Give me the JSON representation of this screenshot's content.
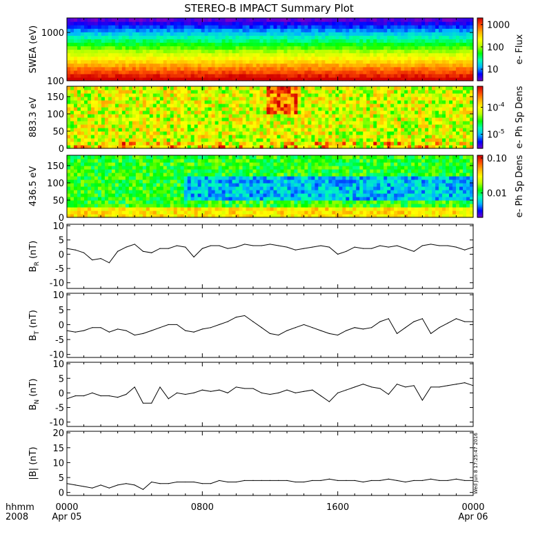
{
  "title": "STEREO-B IMPACT Summary Plot",
  "stamp": "Wed Jun  8 17:25:47 2016",
  "x_axis": {
    "corner_label_1": "hhmm",
    "corner_label_2": "2008",
    "ticks": [
      {
        "label": "0000",
        "sublabel": "Apr 05",
        "hours": 0
      },
      {
        "label": "0800",
        "sublabel": "",
        "hours": 8
      },
      {
        "label": "1600",
        "sublabel": "",
        "hours": 16
      },
      {
        "label": "0000",
        "sublabel": "Apr 06",
        "hours": 24
      }
    ],
    "range_hours": [
      0,
      24
    ]
  },
  "colors": {
    "colormap": [
      "#7a00c8",
      "#0000ff",
      "#00b4ff",
      "#00ffb4",
      "#00ff00",
      "#b4ff00",
      "#ffff00",
      "#ffb400",
      "#ff5000",
      "#d20000"
    ],
    "trace": "#000000"
  },
  "chart_data": [
    {
      "type": "heatmap",
      "name": "swea",
      "ylabel": "SWEA (eV)",
      "ylog": true,
      "ylim": [
        100,
        2000
      ],
      "yticks": [
        {
          "label": "1000",
          "value": 1000
        },
        {
          "label": "100",
          "value": 100
        }
      ],
      "colorbar": {
        "label": "e- Flux",
        "log": true,
        "range": [
          3,
          2000
        ],
        "ticks": [
          {
            "label": "1000",
            "value": 1000
          },
          {
            "label": "100",
            "value": 100
          },
          {
            "label": "10",
            "value": 10
          }
        ]
      }
    },
    {
      "type": "heatmap",
      "name": "pad883",
      "ylabel": "883.3 eV",
      "ylim": [
        0,
        180
      ],
      "yticks": [
        {
          "label": "150",
          "value": 150
        },
        {
          "label": "100",
          "value": 100
        },
        {
          "label": "50",
          "value": 50
        },
        {
          "label": "0",
          "value": 0
        }
      ],
      "colorbar": {
        "label": "e- Ph Sp Dens",
        "log": true,
        "range": [
          3e-06,
          0.0006
        ],
        "ticks": [
          {
            "label": "10",
            "sup": "-4",
            "value": 0.0001
          },
          {
            "label": "10",
            "sup": "-5",
            "value": 1e-05
          }
        ]
      }
    },
    {
      "type": "heatmap",
      "name": "pad436",
      "ylabel": "436.5 eV",
      "ylim": [
        0,
        180
      ],
      "yticks": [
        {
          "label": "150",
          "value": 150
        },
        {
          "label": "100",
          "value": 100
        },
        {
          "label": "50",
          "value": 50
        },
        {
          "label": "0",
          "value": 0
        }
      ],
      "colorbar": {
        "label": "e- Ph Sp Dens",
        "log": true,
        "range": [
          0.002,
          0.12
        ],
        "ticks": [
          {
            "label": "0.10",
            "value": 0.1
          },
          {
            "label": "0.01",
            "value": 0.01
          }
        ]
      }
    },
    {
      "type": "line",
      "name": "br",
      "ylabel": "B",
      "ylabel_sub": "R",
      "ylabel_unit": " (nT)",
      "ylim": [
        -12,
        10.5
      ],
      "yticks": [
        {
          "label": "10",
          "value": 10
        },
        {
          "label": "5",
          "value": 5
        },
        {
          "label": "0",
          "value": 0
        },
        {
          "label": "-5",
          "value": -5
        },
        {
          "label": "-10",
          "value": -10
        }
      ],
      "x": [
        0,
        0.5,
        1,
        1.5,
        2,
        2.5,
        3,
        3.5,
        4,
        4.5,
        5,
        5.5,
        6,
        6.5,
        7,
        7.5,
        8,
        8.5,
        9,
        9.5,
        10,
        10.5,
        11,
        11.5,
        12,
        12.5,
        13,
        13.5,
        14,
        14.5,
        15,
        15.5,
        16,
        16.5,
        17,
        17.5,
        18,
        18.5,
        19,
        19.5,
        20,
        20.5,
        21,
        21.5,
        22,
        22.5,
        23,
        23.5,
        24
      ],
      "values": [
        2,
        1.5,
        0.5,
        -2,
        -1.5,
        -3,
        1,
        2.5,
        3.5,
        1,
        0.5,
        2,
        2,
        3,
        2.5,
        -1,
        2,
        3,
        3,
        2,
        2.5,
        3.5,
        3,
        3,
        3.5,
        3,
        2.5,
        1.5,
        2,
        2.5,
        3,
        2.5,
        0,
        1,
        2.5,
        2,
        2,
        3,
        2.5,
        3,
        2,
        1,
        3,
        3.5,
        3,
        3,
        2.5,
        1.5,
        2.5
      ]
    },
    {
      "type": "line",
      "name": "bt",
      "ylabel": "B",
      "ylabel_sub": "T",
      "ylabel_unit": " (nT)",
      "ylim": [
        -11,
        10.5
      ],
      "yticks": [
        {
          "label": "10",
          "value": 10
        },
        {
          "label": "5",
          "value": 5
        },
        {
          "label": "0",
          "value": 0
        },
        {
          "label": "-5",
          "value": -5
        },
        {
          "label": "-10",
          "value": -10
        }
      ],
      "x": [
        0,
        0.5,
        1,
        1.5,
        2,
        2.5,
        3,
        3.5,
        4,
        4.5,
        5,
        5.5,
        6,
        6.5,
        7,
        7.5,
        8,
        8.5,
        9,
        9.5,
        10,
        10.5,
        11,
        11.5,
        12,
        12.5,
        13,
        13.5,
        14,
        14.5,
        15,
        15.5,
        16,
        16.5,
        17,
        17.5,
        18,
        18.5,
        19,
        19.5,
        20,
        20.5,
        21,
        21.5,
        22,
        22.5,
        23,
        23.5,
        24
      ],
      "values": [
        -2,
        -2.5,
        -2,
        -1,
        -1,
        -2.5,
        -1.5,
        -2,
        -3.5,
        -3,
        -2,
        -1,
        0,
        0,
        -2,
        -2.5,
        -1.5,
        -1,
        0,
        1,
        2.5,
        3,
        1,
        -1,
        -3,
        -3.5,
        -2,
        -1,
        0,
        -1,
        -2,
        -3,
        -3.5,
        -2,
        -1,
        -1.5,
        -1,
        1,
        2,
        -3,
        -1,
        1,
        2,
        -3,
        -1,
        0.5,
        2,
        1,
        1
      ]
    },
    {
      "type": "line",
      "name": "bn",
      "ylabel": "B",
      "ylabel_sub": "N",
      "ylabel_unit": " (nT)",
      "ylim": [
        -11.5,
        10.5
      ],
      "yticks": [
        {
          "label": "10",
          "value": 10
        },
        {
          "label": "5",
          "value": 5
        },
        {
          "label": "0",
          "value": 0
        },
        {
          "label": "-5",
          "value": -5
        },
        {
          "label": "-10",
          "value": -10
        }
      ],
      "x": [
        0,
        0.5,
        1,
        1.5,
        2,
        2.5,
        3,
        3.5,
        4,
        4.5,
        5,
        5.5,
        6,
        6.5,
        7,
        7.5,
        8,
        8.5,
        9,
        9.5,
        10,
        10.5,
        11,
        11.5,
        12,
        12.5,
        13,
        13.5,
        14,
        14.5,
        15,
        15.5,
        16,
        16.5,
        17,
        17.5,
        18,
        18.5,
        19,
        19.5,
        20,
        20.5,
        21,
        21.5,
        22,
        22.5,
        23,
        23.5,
        24
      ],
      "values": [
        -2,
        -1,
        -1,
        0,
        -1,
        -1,
        -1.5,
        -0.5,
        2,
        -3.5,
        -3.5,
        2,
        -2,
        0,
        -0.5,
        0,
        1,
        0.5,
        1,
        0,
        2,
        1.5,
        1.5,
        0,
        -0.5,
        0,
        1,
        0,
        0.5,
        1,
        -1,
        -3,
        0,
        1,
        2,
        3,
        2,
        1.5,
        -0.5,
        3,
        2,
        2.5,
        -2.5,
        2,
        2,
        2.5,
        3,
        3.5,
        2.5
      ]
    },
    {
      "type": "line",
      "name": "bmag",
      "ylabel": "|B| (nT)",
      "ylim": [
        -1,
        20.5
      ],
      "yticks": [
        {
          "label": "20",
          "value": 20
        },
        {
          "label": "15",
          "value": 15
        },
        {
          "label": "10",
          "value": 10
        },
        {
          "label": "5",
          "value": 5
        },
        {
          "label": "0",
          "value": 0
        }
      ],
      "x": [
        0,
        0.5,
        1,
        1.5,
        2,
        2.5,
        3,
        3.5,
        4,
        4.5,
        5,
        5.5,
        6,
        6.5,
        7,
        7.5,
        8,
        8.5,
        9,
        9.5,
        10,
        10.5,
        11,
        11.5,
        12,
        12.5,
        13,
        13.5,
        14,
        14.5,
        15,
        15.5,
        16,
        16.5,
        17,
        17.5,
        18,
        18.5,
        19,
        19.5,
        20,
        20.5,
        21,
        21.5,
        22,
        22.5,
        23,
        23.5,
        24
      ],
      "values": [
        3,
        2.5,
        2,
        1.5,
        2.5,
        1.5,
        2.5,
        3,
        2.5,
        1,
        3.5,
        3,
        3,
        3.5,
        3.5,
        3.5,
        3,
        3,
        4,
        3.5,
        3.5,
        4,
        4,
        4,
        4,
        4,
        4,
        3.5,
        3.5,
        4,
        4,
        4.5,
        4,
        4,
        4,
        3.5,
        4,
        4,
        4.5,
        4,
        3.5,
        4,
        4,
        4.5,
        4,
        4,
        4.5,
        4,
        4
      ]
    }
  ]
}
